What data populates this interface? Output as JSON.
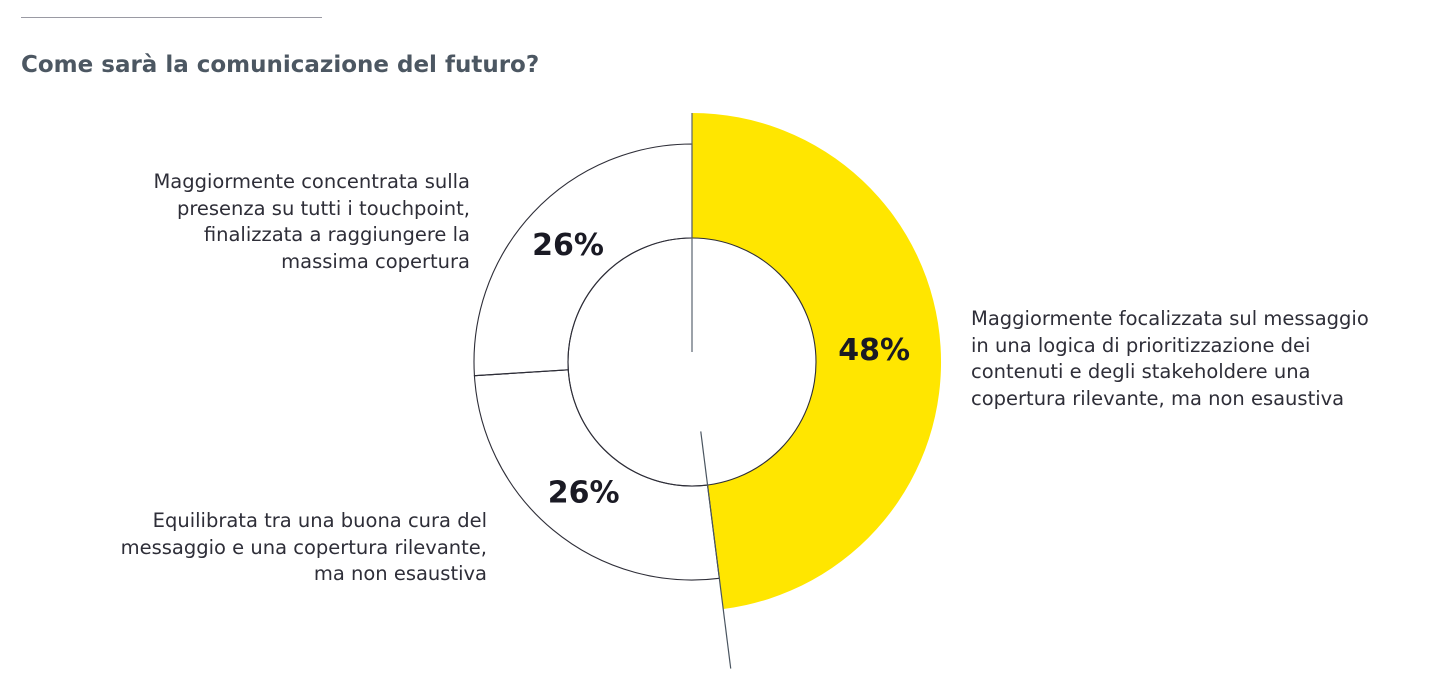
{
  "title": "Come sarà la comunicazione del futuro?",
  "chart_data": {
    "type": "pie",
    "title": "Come sarà la comunicazione del futuro?",
    "slices": [
      {
        "label": "Maggiormente focalizzata sul messaggio in una logica di prioritizzazione dei contenuti e degli stakeholdere una copertura rilevante, ma non esaustiva",
        "value": 48,
        "value_label": "48%",
        "color": "#ffe600",
        "emphasized": true
      },
      {
        "label": "Equilibrata tra una buona cura del messaggio e una copertura rilevante, ma non esaustiva",
        "value": 26,
        "value_label": "26%",
        "color": "#ffffff",
        "emphasized": false
      },
      {
        "label": "Maggiormente concentrata sulla presenza su tutti i touchpoint, finalizzata a raggiungere la massima copertura",
        "value": 26,
        "value_label": "26%",
        "color": "#ffffff",
        "emphasized": false
      }
    ]
  },
  "labels": {
    "right": "Maggiormente focalizzata sul messaggio\nin una logica di prioritizzazione dei\ncontenuti e degli stakeholdere una\ncopertura rilevante, ma non esaustiva",
    "left_top": "Maggiormente concentrata sulla\npresenza su tutti i touchpoint,\nfinalizzata a raggiungere la\nmassima copertura",
    "left_bottom": "Equilibrata tra una buona cura del\nmessaggio e una copertura rilevante,\nma non esaustiva"
  }
}
